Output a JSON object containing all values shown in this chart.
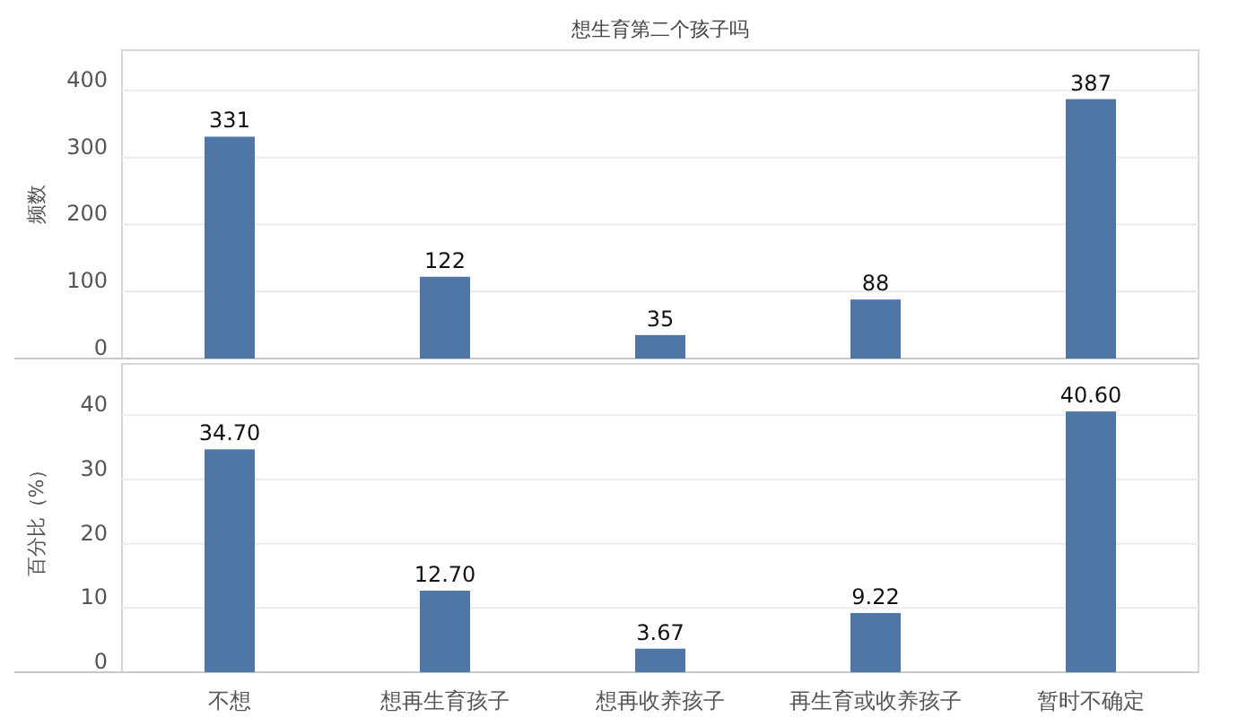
{
  "chart_data": [
    {
      "type": "bar",
      "title": "想生育第二个孩子吗",
      "ylabel": "频数",
      "categories": [
        null,
        null,
        null,
        null,
        null
      ],
      "values": [
        331,
        122,
        35,
        88,
        387
      ],
      "color": "#4e77a5",
      "ylim": [
        0,
        460
      ],
      "yticks": [
        0,
        100,
        200,
        300,
        400
      ],
      "grid": "y",
      "data_labels": true
    },
    {
      "type": "bar",
      "ylabel": "百分比（%）",
      "categories": [
        "不想",
        "想再生育孩子",
        "想再收养孩子",
        "再生育或收养孩子",
        "暂时不确定"
      ],
      "values": [
        34.7,
        12.7,
        3.67,
        9.22,
        40.6
      ],
      "value_labels": [
        "34.70",
        "12.70",
        "3.67",
        "9.22",
        "40.60"
      ],
      "color": "#4e77a5",
      "ylim": [
        0,
        48
      ],
      "yticks": [
        0,
        10,
        20,
        30,
        40
      ],
      "grid": "y"
    }
  ]
}
